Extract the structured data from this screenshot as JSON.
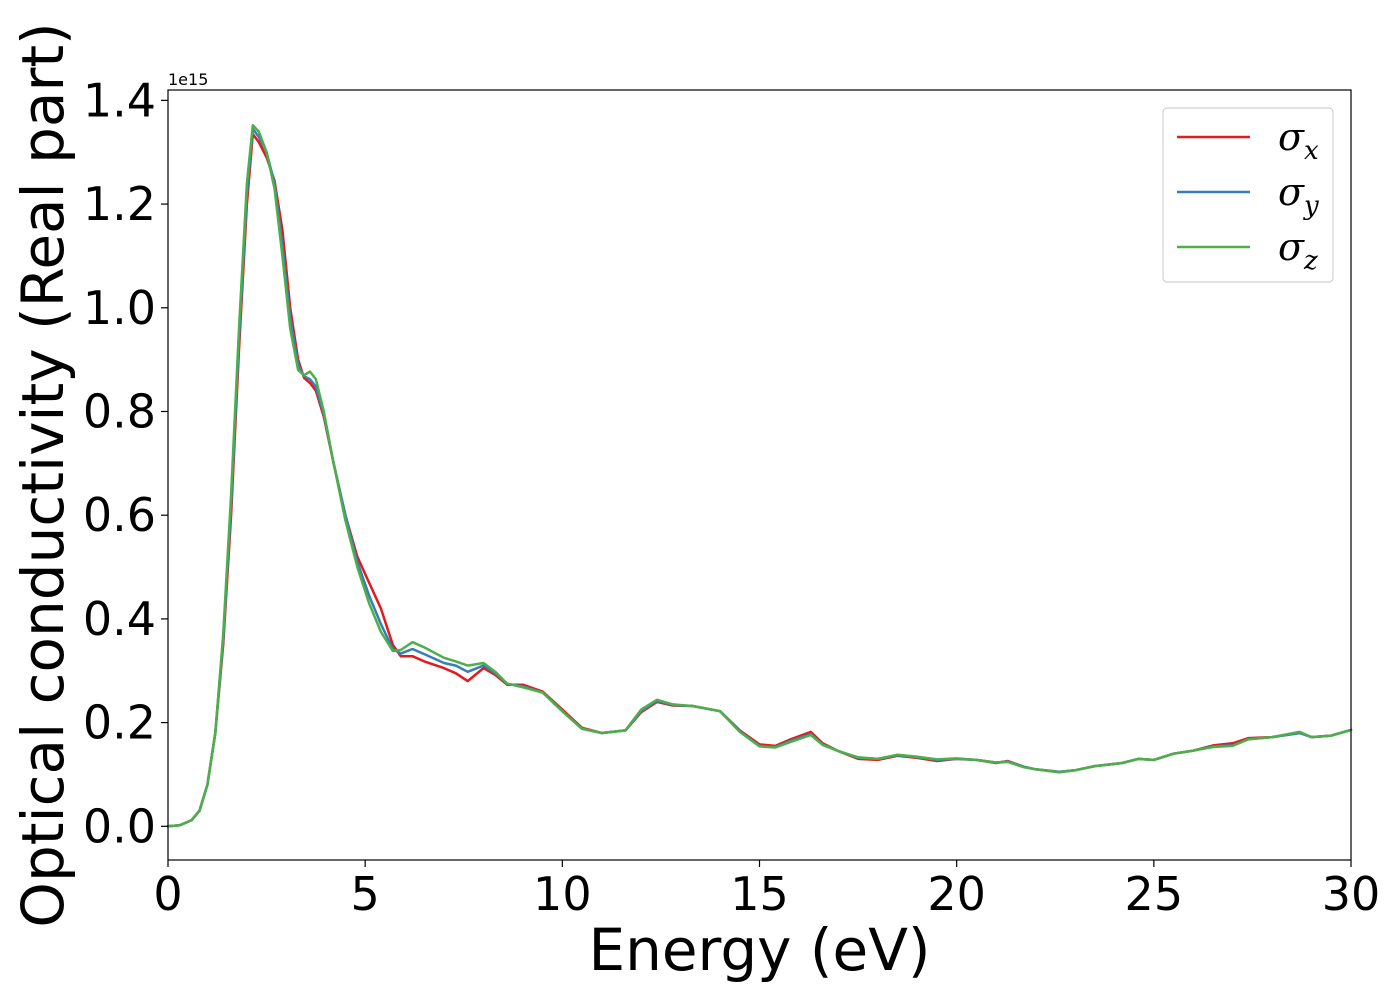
{
  "chart_data": {
    "type": "line",
    "xlabel": "Energy (eV)",
    "ylabel": "Optical conductivity (Real part)",
    "y_offset_text": "1e15",
    "xlim": [
      0,
      30
    ],
    "ylim": [
      -0.065,
      1.42
    ],
    "xticks": [
      0,
      5,
      10,
      15,
      20,
      25,
      30
    ],
    "yticks": [
      0.0,
      0.2,
      0.4,
      0.6,
      0.8,
      1.0,
      1.2,
      1.4
    ],
    "xtick_labels": [
      "0",
      "5",
      "10",
      "15",
      "20",
      "25",
      "30"
    ],
    "ytick_labels": [
      "0.0",
      "0.2",
      "0.4",
      "0.6",
      "0.8",
      "1.0",
      "1.2",
      "1.4"
    ],
    "grid": false,
    "legend_position": "top-right",
    "series": [
      {
        "name": "σx",
        "base": "σ",
        "sub": "x",
        "color": "#e41a1c",
        "points": [
          [
            0,
            0.0
          ],
          [
            0.3,
            0.002
          ],
          [
            0.6,
            0.012
          ],
          [
            0.8,
            0.03
          ],
          [
            1.0,
            0.08
          ],
          [
            1.2,
            0.18
          ],
          [
            1.4,
            0.35
          ],
          [
            1.6,
            0.6
          ],
          [
            1.8,
            0.92
          ],
          [
            2.0,
            1.2
          ],
          [
            2.15,
            1.335
          ],
          [
            2.3,
            1.32
          ],
          [
            2.5,
            1.29
          ],
          [
            2.7,
            1.245
          ],
          [
            2.9,
            1.15
          ],
          [
            3.1,
            1.0
          ],
          [
            3.3,
            0.9
          ],
          [
            3.45,
            0.865
          ],
          [
            3.6,
            0.855
          ],
          [
            3.75,
            0.84
          ],
          [
            3.95,
            0.79
          ],
          [
            4.2,
            0.7
          ],
          [
            4.5,
            0.6
          ],
          [
            4.8,
            0.52
          ],
          [
            5.1,
            0.47
          ],
          [
            5.4,
            0.42
          ],
          [
            5.7,
            0.35
          ],
          [
            5.9,
            0.328
          ],
          [
            6.2,
            0.328
          ],
          [
            6.5,
            0.318
          ],
          [
            7.0,
            0.305
          ],
          [
            7.3,
            0.295
          ],
          [
            7.6,
            0.28
          ],
          [
            8.0,
            0.305
          ],
          [
            8.3,
            0.292
          ],
          [
            8.6,
            0.273
          ],
          [
            9.0,
            0.273
          ],
          [
            9.5,
            0.26
          ],
          [
            10.0,
            0.225
          ],
          [
            10.5,
            0.19
          ],
          [
            11.0,
            0.18
          ],
          [
            11.6,
            0.185
          ],
          [
            12.0,
            0.22
          ],
          [
            12.4,
            0.24
          ],
          [
            12.8,
            0.233
          ],
          [
            13.3,
            0.232
          ],
          [
            14.0,
            0.222
          ],
          [
            14.5,
            0.185
          ],
          [
            15.0,
            0.158
          ],
          [
            15.4,
            0.155
          ],
          [
            15.8,
            0.168
          ],
          [
            16.3,
            0.182
          ],
          [
            16.6,
            0.16
          ],
          [
            17.0,
            0.145
          ],
          [
            17.5,
            0.13
          ],
          [
            18.0,
            0.128
          ],
          [
            18.5,
            0.136
          ],
          [
            19.0,
            0.132
          ],
          [
            19.5,
            0.126
          ],
          [
            20.0,
            0.13
          ],
          [
            20.5,
            0.128
          ],
          [
            21.0,
            0.122
          ],
          [
            21.3,
            0.126
          ],
          [
            21.7,
            0.115
          ],
          [
            22.0,
            0.11
          ],
          [
            22.6,
            0.105
          ],
          [
            23.0,
            0.108
          ],
          [
            23.5,
            0.116
          ],
          [
            24.2,
            0.122
          ],
          [
            24.6,
            0.13
          ],
          [
            25.0,
            0.128
          ],
          [
            25.5,
            0.14
          ],
          [
            26.0,
            0.146
          ],
          [
            26.5,
            0.156
          ],
          [
            27.0,
            0.16
          ],
          [
            27.4,
            0.17
          ],
          [
            28.0,
            0.172
          ],
          [
            28.7,
            0.18
          ],
          [
            29.0,
            0.172
          ],
          [
            29.5,
            0.175
          ],
          [
            30.0,
            0.186
          ]
        ]
      },
      {
        "name": "σy",
        "base": "σ",
        "sub": "y",
        "color": "#377eb8",
        "points": [
          [
            0,
            0.0
          ],
          [
            0.3,
            0.002
          ],
          [
            0.6,
            0.012
          ],
          [
            0.8,
            0.03
          ],
          [
            1.0,
            0.08
          ],
          [
            1.2,
            0.18
          ],
          [
            1.4,
            0.36
          ],
          [
            1.6,
            0.62
          ],
          [
            1.8,
            0.94
          ],
          [
            2.0,
            1.22
          ],
          [
            2.15,
            1.345
          ],
          [
            2.3,
            1.33
          ],
          [
            2.5,
            1.3
          ],
          [
            2.7,
            1.24
          ],
          [
            2.9,
            1.12
          ],
          [
            3.1,
            0.98
          ],
          [
            3.3,
            0.89
          ],
          [
            3.45,
            0.868
          ],
          [
            3.6,
            0.862
          ],
          [
            3.75,
            0.848
          ],
          [
            3.95,
            0.795
          ],
          [
            4.2,
            0.7
          ],
          [
            4.5,
            0.6
          ],
          [
            4.8,
            0.51
          ],
          [
            5.1,
            0.445
          ],
          [
            5.4,
            0.39
          ],
          [
            5.7,
            0.342
          ],
          [
            5.9,
            0.333
          ],
          [
            6.2,
            0.342
          ],
          [
            6.5,
            0.332
          ],
          [
            7.0,
            0.315
          ],
          [
            7.3,
            0.31
          ],
          [
            7.6,
            0.298
          ],
          [
            8.0,
            0.31
          ],
          [
            8.3,
            0.295
          ],
          [
            8.6,
            0.275
          ],
          [
            9.0,
            0.27
          ],
          [
            9.5,
            0.258
          ],
          [
            10.0,
            0.222
          ],
          [
            10.5,
            0.188
          ],
          [
            11.0,
            0.18
          ],
          [
            11.6,
            0.185
          ],
          [
            12.0,
            0.222
          ],
          [
            12.4,
            0.242
          ],
          [
            12.8,
            0.234
          ],
          [
            13.3,
            0.232
          ],
          [
            14.0,
            0.222
          ],
          [
            14.5,
            0.183
          ],
          [
            15.0,
            0.155
          ],
          [
            15.4,
            0.153
          ],
          [
            15.8,
            0.165
          ],
          [
            16.3,
            0.178
          ],
          [
            16.6,
            0.158
          ],
          [
            17.0,
            0.145
          ],
          [
            17.5,
            0.132
          ],
          [
            18.0,
            0.13
          ],
          [
            18.5,
            0.137
          ],
          [
            19.0,
            0.133
          ],
          [
            19.5,
            0.128
          ],
          [
            20.0,
            0.13
          ],
          [
            20.5,
            0.128
          ],
          [
            21.0,
            0.123
          ],
          [
            21.3,
            0.125
          ],
          [
            21.7,
            0.115
          ],
          [
            22.0,
            0.11
          ],
          [
            22.6,
            0.105
          ],
          [
            23.0,
            0.108
          ],
          [
            23.5,
            0.116
          ],
          [
            24.2,
            0.122
          ],
          [
            24.6,
            0.13
          ],
          [
            25.0,
            0.128
          ],
          [
            25.5,
            0.14
          ],
          [
            26.0,
            0.146
          ],
          [
            26.5,
            0.154
          ],
          [
            27.0,
            0.156
          ],
          [
            27.4,
            0.168
          ],
          [
            28.0,
            0.172
          ],
          [
            28.7,
            0.18
          ],
          [
            29.0,
            0.172
          ],
          [
            29.5,
            0.175
          ],
          [
            30.0,
            0.186
          ]
        ]
      },
      {
        "name": "σz",
        "base": "σ",
        "sub": "z",
        "color": "#4daf4a",
        "points": [
          [
            0,
            0.0
          ],
          [
            0.3,
            0.002
          ],
          [
            0.6,
            0.012
          ],
          [
            0.8,
            0.03
          ],
          [
            1.0,
            0.08
          ],
          [
            1.2,
            0.18
          ],
          [
            1.4,
            0.37
          ],
          [
            1.6,
            0.64
          ],
          [
            1.8,
            0.96
          ],
          [
            2.0,
            1.24
          ],
          [
            2.15,
            1.352
          ],
          [
            2.3,
            1.34
          ],
          [
            2.5,
            1.3
          ],
          [
            2.7,
            1.23
          ],
          [
            2.9,
            1.1
          ],
          [
            3.1,
            0.96
          ],
          [
            3.3,
            0.88
          ],
          [
            3.45,
            0.87
          ],
          [
            3.6,
            0.877
          ],
          [
            3.75,
            0.862
          ],
          [
            3.95,
            0.8
          ],
          [
            4.2,
            0.7
          ],
          [
            4.5,
            0.59
          ],
          [
            4.8,
            0.5
          ],
          [
            5.1,
            0.43
          ],
          [
            5.4,
            0.375
          ],
          [
            5.7,
            0.338
          ],
          [
            5.9,
            0.34
          ],
          [
            6.2,
            0.355
          ],
          [
            6.5,
            0.345
          ],
          [
            7.0,
            0.325
          ],
          [
            7.3,
            0.318
          ],
          [
            7.6,
            0.31
          ],
          [
            8.0,
            0.315
          ],
          [
            8.3,
            0.298
          ],
          [
            8.6,
            0.275
          ],
          [
            9.0,
            0.268
          ],
          [
            9.5,
            0.258
          ],
          [
            10.0,
            0.222
          ],
          [
            10.5,
            0.188
          ],
          [
            11.0,
            0.18
          ],
          [
            11.6,
            0.185
          ],
          [
            12.0,
            0.225
          ],
          [
            12.4,
            0.244
          ],
          [
            12.8,
            0.235
          ],
          [
            13.3,
            0.232
          ],
          [
            14.0,
            0.222
          ],
          [
            14.5,
            0.182
          ],
          [
            15.0,
            0.154
          ],
          [
            15.4,
            0.152
          ],
          [
            15.8,
            0.163
          ],
          [
            16.3,
            0.176
          ],
          [
            16.6,
            0.157
          ],
          [
            17.0,
            0.145
          ],
          [
            17.5,
            0.133
          ],
          [
            18.0,
            0.13
          ],
          [
            18.5,
            0.138
          ],
          [
            19.0,
            0.134
          ],
          [
            19.5,
            0.129
          ],
          [
            20.0,
            0.131
          ],
          [
            20.5,
            0.128
          ],
          [
            21.0,
            0.123
          ],
          [
            21.3,
            0.124
          ],
          [
            21.7,
            0.114
          ],
          [
            22.0,
            0.11
          ],
          [
            22.6,
            0.104
          ],
          [
            23.0,
            0.108
          ],
          [
            23.5,
            0.116
          ],
          [
            24.2,
            0.122
          ],
          [
            24.6,
            0.13
          ],
          [
            25.0,
            0.128
          ],
          [
            25.5,
            0.14
          ],
          [
            26.0,
            0.146
          ],
          [
            26.5,
            0.153
          ],
          [
            27.0,
            0.155
          ],
          [
            27.4,
            0.168
          ],
          [
            28.0,
            0.172
          ],
          [
            28.7,
            0.182
          ],
          [
            29.0,
            0.172
          ],
          [
            29.5,
            0.175
          ],
          [
            30.0,
            0.186
          ]
        ]
      }
    ]
  }
}
